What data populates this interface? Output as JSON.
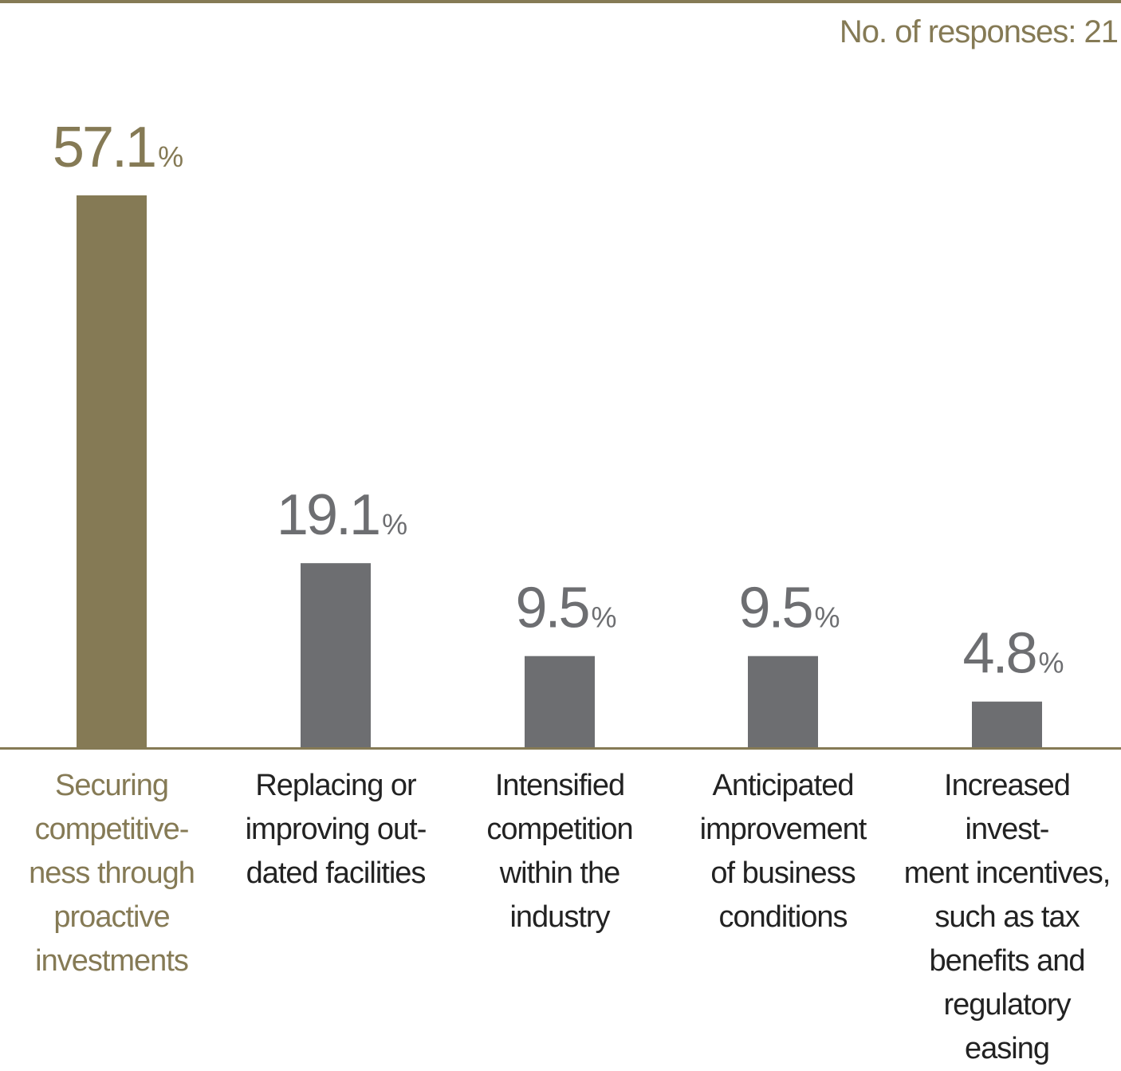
{
  "header": {
    "responses_text": "No. of responses: 21"
  },
  "colors": {
    "accent": "#857a55",
    "bar_default": "#6d6e71",
    "value_text": "#6d6e71",
    "label_text": "#222222"
  },
  "chart_data": {
    "type": "bar",
    "title": "",
    "xlabel": "",
    "ylabel": "",
    "ylim": [
      0,
      57.1
    ],
    "unit": "%",
    "categories": [
      "Securing competitive-ness through proactive investments",
      "Replacing or improving out-dated facilities",
      "Intensified competition within the industry",
      "Anticipated improvement of business conditions",
      "Increased invest-ment incentives, such as tax benefits and regulatory easing"
    ],
    "category_lines": [
      [
        "Securing",
        "competitive-",
        "ness through",
        "proactive",
        "investments"
      ],
      [
        "Replacing or",
        "improving out-",
        "dated facilities"
      ],
      [
        "Intensified",
        "competition",
        "within the",
        "industry"
      ],
      [
        "Anticipated",
        "improvement",
        "of business",
        "conditions"
      ],
      [
        "Increased invest-",
        "ment incentives,",
        "such as tax",
        "benefits and",
        "regulatory easing"
      ]
    ],
    "values": [
      57.1,
      19.1,
      9.5,
      9.5,
      4.8
    ],
    "value_labels": [
      "57.1",
      "19.1",
      "9.5",
      "9.5",
      "4.8"
    ],
    "highlight_index": 0
  }
}
